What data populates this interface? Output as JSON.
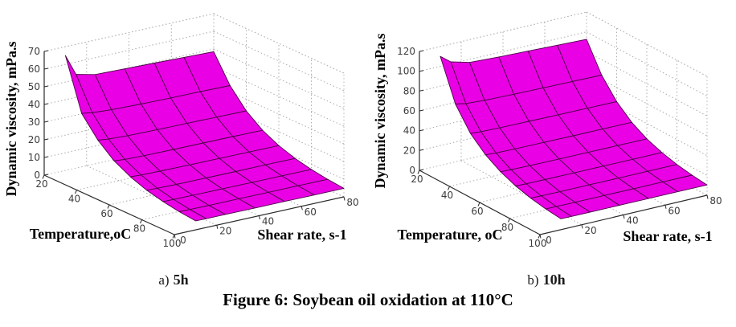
{
  "figure": {
    "caption": "Figure 6: Soybean oil oxidation at 110°C"
  },
  "chart_data": [
    {
      "type": "surface",
      "panel": "a",
      "label_prefix": "a)",
      "label_text": "5h",
      "xlabel": "Shear rate, s-1",
      "ylabel": "Temperature,oC",
      "zlabel": "Dynamic viscosity, mPa.s",
      "xlim": [
        0,
        80
      ],
      "xticks": [
        0,
        20,
        40,
        60,
        80
      ],
      "ylim": [
        20,
        100
      ],
      "yticks": [
        20,
        40,
        60,
        80,
        100
      ],
      "zlim": [
        0,
        70
      ],
      "zticks": [
        0,
        10,
        20,
        30,
        40,
        50,
        60,
        70
      ],
      "grid": true,
      "surface_color": "#ea00e4",
      "edge_color": "#4c0047",
      "shear_rates": [
        10,
        15,
        24,
        38,
        52,
        66,
        80
      ],
      "temperatures": [
        20,
        30,
        40,
        50,
        60,
        70,
        80,
        90,
        100
      ],
      "viscosity": [
        [
          65.0,
          53.0,
          50.5,
          50.0,
          49.5,
          49.0,
          48.5
        ],
        [
          36.5,
          35.5,
          34.8,
          34.3,
          34.0,
          33.8,
          33.5
        ],
        [
          25.5,
          24.8,
          24.3,
          24.0,
          23.8,
          23.6,
          23.4
        ],
        [
          18.0,
          17.5,
          17.2,
          17.0,
          16.9,
          16.8,
          16.6
        ],
        [
          13.2,
          12.9,
          12.7,
          12.5,
          12.4,
          12.3,
          12.2
        ],
        [
          9.8,
          9.6,
          9.4,
          9.3,
          9.2,
          9.2,
          9.1
        ],
        [
          7.6,
          7.5,
          7.4,
          7.3,
          7.2,
          7.2,
          7.1
        ],
        [
          6.1,
          6.0,
          5.9,
          5.9,
          5.8,
          5.8,
          5.7
        ],
        [
          5.1,
          5.0,
          5.0,
          4.9,
          4.9,
          4.8,
          4.8
        ]
      ]
    },
    {
      "type": "surface",
      "panel": "b",
      "label_prefix": "b)",
      "label_text": "10h",
      "xlabel": "Shear rate, s-1",
      "ylabel": "Temperature, oC",
      "zlabel": "Dynamic viscosity, mPa.s",
      "xlim": [
        0,
        80
      ],
      "xticks": [
        0,
        20,
        40,
        60,
        80
      ],
      "ylim": [
        20,
        100
      ],
      "yticks": [
        20,
        40,
        60,
        80,
        100
      ],
      "zlim": [
        0,
        120
      ],
      "zticks": [
        0,
        20,
        40,
        60,
        80,
        100,
        120
      ],
      "grid": true,
      "surface_color": "#ea00e4",
      "edge_color": "#4c0047",
      "shear_rates": [
        10,
        15,
        24,
        38,
        52,
        66,
        80
      ],
      "temperatures": [
        20,
        30,
        40,
        50,
        60,
        70,
        80,
        90,
        100
      ],
      "viscosity": [
        [
          110.0,
          102.0,
          97.0,
          95.5,
          94.5,
          93.5,
          92.5
        ],
        [
          70.0,
          68.0,
          66.8,
          66.0,
          65.5,
          65.0,
          64.5
        ],
        [
          48.5,
          47.8,
          47.2,
          46.8,
          46.4,
          46.1,
          45.8
        ],
        [
          35.0,
          34.4,
          34.0,
          33.7,
          33.4,
          33.2,
          33.0
        ],
        [
          26.0,
          25.6,
          25.2,
          25.0,
          24.8,
          24.6,
          24.5
        ],
        [
          19.8,
          19.5,
          19.3,
          19.1,
          19.0,
          18.9,
          18.8
        ],
        [
          15.6,
          15.4,
          15.2,
          15.1,
          15.0,
          14.9,
          14.8
        ],
        [
          12.8,
          12.7,
          12.6,
          12.5,
          12.4,
          12.3,
          12.2
        ],
        [
          11.0,
          10.9,
          10.8,
          10.7,
          10.6,
          10.5,
          10.4
        ]
      ]
    }
  ]
}
